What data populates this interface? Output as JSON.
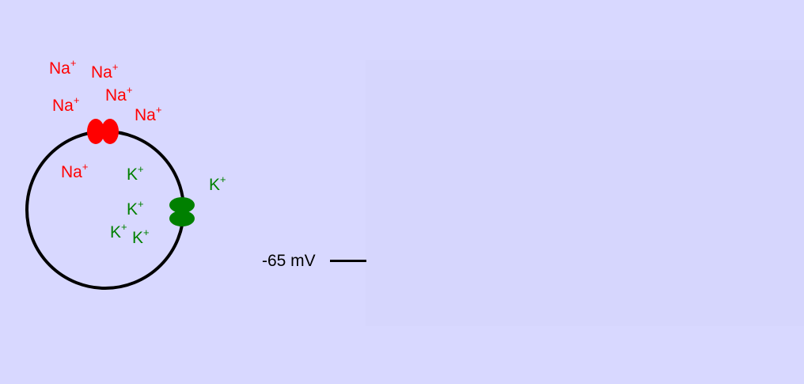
{
  "colors": {
    "background": "#d8d8ff",
    "membrane": "#000000",
    "sodium": "#ff0000",
    "potassium": "#008000"
  },
  "ions": {
    "sodium": {
      "symbol": "Na",
      "charge": "+"
    },
    "potassium": {
      "symbol": "K",
      "charge": "+"
    }
  },
  "channels": {
    "sodium": "sodium-channel-icon",
    "potassium": "potassium-channel-icon"
  },
  "voltage": {
    "label": "-65 mV"
  }
}
